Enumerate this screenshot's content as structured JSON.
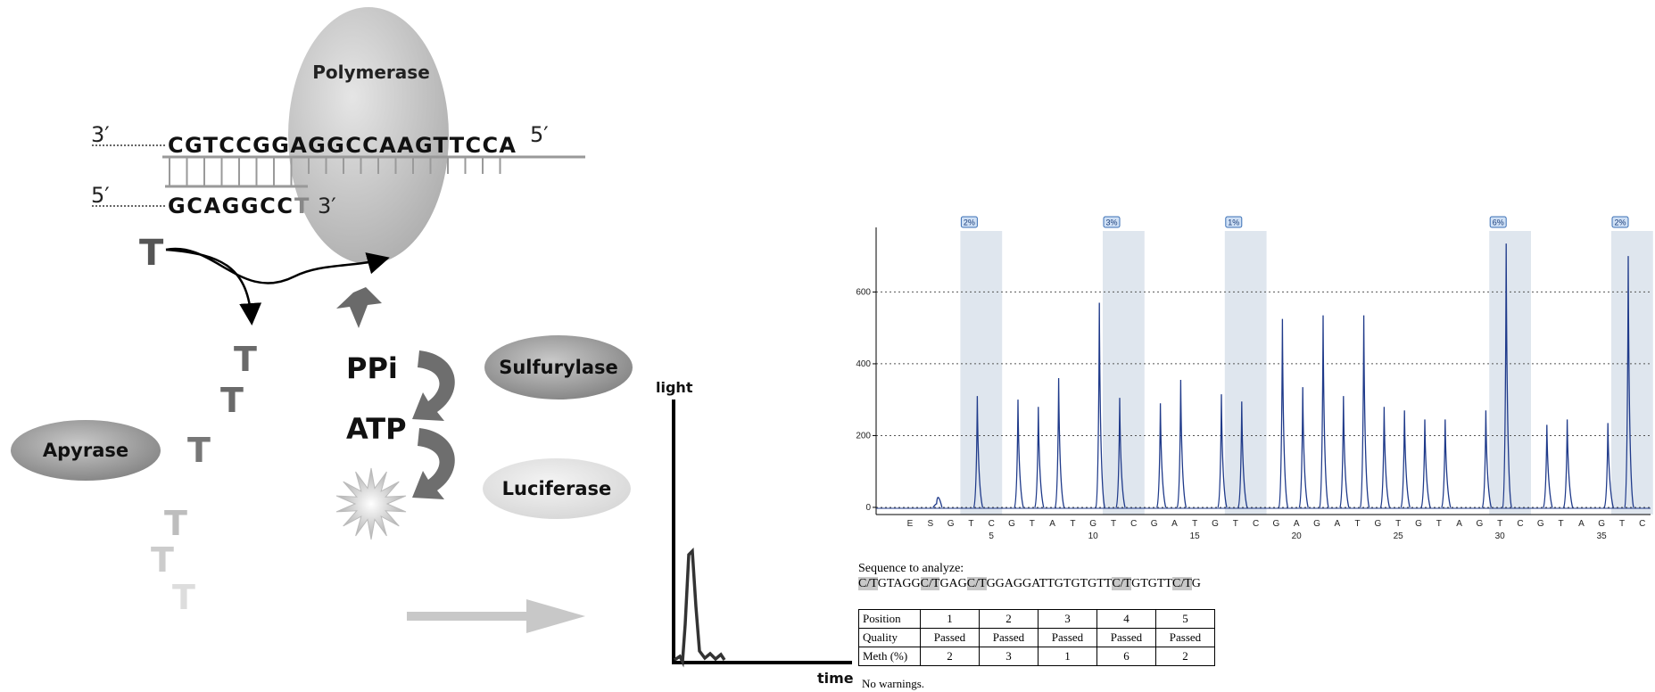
{
  "diagram": {
    "polymerase_label": "Polymerase",
    "strand_top": {
      "end_left": "3′",
      "sequence": "CGTCCGGAGGCCAAGTTCCA",
      "end_right": "5′"
    },
    "strand_bottom": {
      "end_left": "5′",
      "sequence": "GCAGGCC",
      "last_base": "T",
      "end_right": "3′"
    },
    "nucleotide": "T",
    "ppi_label": "PPi",
    "atp_label": "ATP",
    "sulfurylase_label": "Sulfurylase",
    "luciferase_label": "Luciferase",
    "apyrase_label": "Apyrase",
    "light_axis_label": "light",
    "time_axis_label": "time",
    "colors": {
      "enzyme_dark": "#8a8a8a",
      "enzyme_light": "#e6e6e6",
      "arrow_gray": "#c8c8c8"
    }
  },
  "chart_data": {
    "type": "bar",
    "title": "",
    "xlabel": "",
    "ylabel": "",
    "ylim": [
      -20,
      770
    ],
    "yticks": [
      0,
      200,
      400,
      600
    ],
    "xtick_numbers": [
      5,
      10,
      15,
      20,
      25,
      30,
      35
    ],
    "grid": "horizontal dotted",
    "dispensation": [
      "E",
      "S",
      "G",
      "T",
      "C",
      "G",
      "T",
      "A",
      "T",
      "G",
      "T",
      "C",
      "G",
      "A",
      "T",
      "G",
      "T",
      "C",
      "G",
      "A",
      "G",
      "A",
      "T",
      "G",
      "T",
      "G",
      "T",
      "A",
      "G",
      "T",
      "C",
      "G",
      "T",
      "A",
      "G",
      "T",
      "C"
    ],
    "peak_heights": [
      0,
      10,
      0,
      310,
      0,
      300,
      280,
      360,
      0,
      570,
      305,
      0,
      290,
      355,
      0,
      315,
      295,
      0,
      525,
      335,
      535,
      310,
      535,
      280,
      270,
      245,
      245,
      0,
      270,
      735,
      0,
      230,
      245,
      0,
      235,
      700,
      0
    ],
    "highlight_regions": [
      {
        "label": "2%",
        "positions": [
          4,
          5
        ],
        "value": 2
      },
      {
        "label": "3%",
        "positions": [
          11,
          12
        ],
        "value": 3
      },
      {
        "label": "1%",
        "positions": [
          17,
          18
        ],
        "value": 1
      },
      {
        "label": "6%",
        "positions": [
          30,
          31
        ],
        "value": 6
      },
      {
        "label": "2%",
        "positions": [
          36,
          37
        ],
        "value": 2
      }
    ],
    "colors": {
      "peak": "#1f3a8a",
      "highlight": "#dfe6ee",
      "badge_fill": "#cfe0f5",
      "badge_stroke": "#3b6fb5"
    }
  },
  "sequence": {
    "label": "Sequence to analyze:",
    "segments": [
      {
        "text": "C/T",
        "hl": true
      },
      {
        "text": "GTAGG",
        "hl": false
      },
      {
        "text": "C/T",
        "hl": true
      },
      {
        "text": "GAG",
        "hl": false
      },
      {
        "text": "C/T",
        "hl": true
      },
      {
        "text": "GGAGGATTGTGTGTT",
        "hl": false
      },
      {
        "text": "C/T",
        "hl": true
      },
      {
        "text": "GTGTT",
        "hl": false
      },
      {
        "text": "C/T",
        "hl": true
      },
      {
        "text": "G",
        "hl": false
      }
    ]
  },
  "table": {
    "rows": [
      {
        "header": "Position",
        "cells": [
          "1",
          "2",
          "3",
          "4",
          "5"
        ]
      },
      {
        "header": "Quality",
        "cells": [
          "Passed",
          "Passed",
          "Passed",
          "Passed",
          "Passed"
        ]
      },
      {
        "header": "Meth (%)",
        "cells": [
          "2",
          "3",
          "1",
          "6",
          "2"
        ]
      }
    ]
  },
  "warnings": "No warnings."
}
